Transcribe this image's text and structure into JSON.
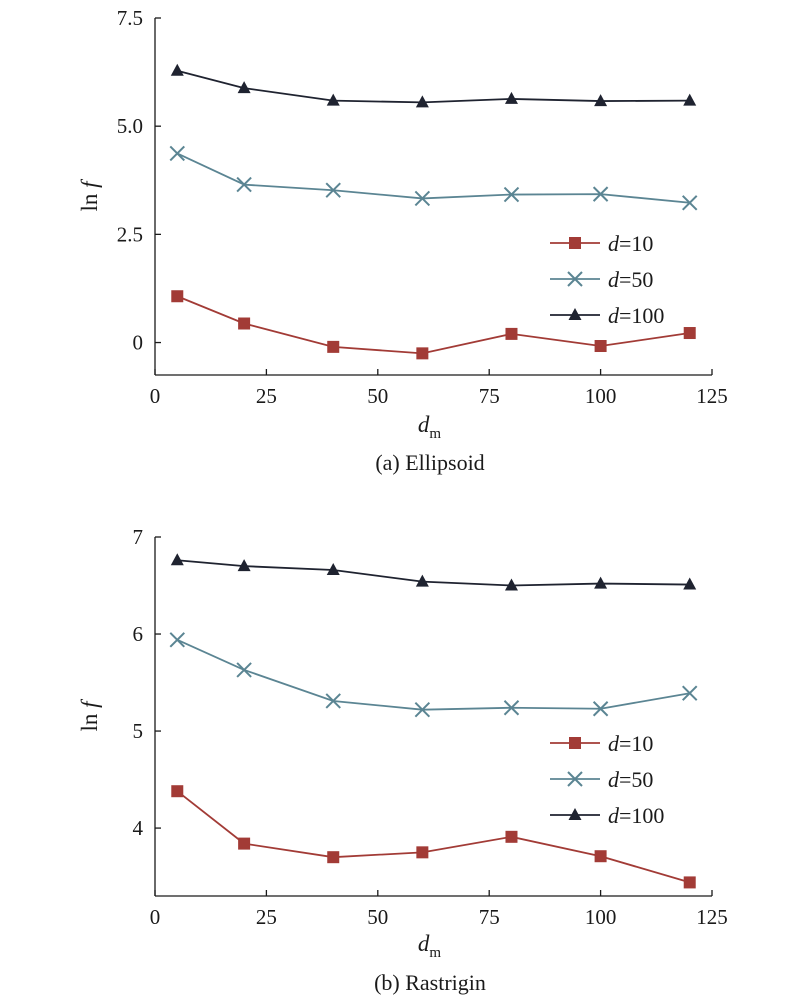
{
  "chart_data": [
    {
      "type": "line",
      "caption": "(a) Ellipsoid",
      "xlabel": {
        "base": "d",
        "sub": "m"
      },
      "ylabel": {
        "prefix": "ln ",
        "var": "f"
      },
      "xlim": [
        0,
        125
      ],
      "ylim": [
        -0.75,
        7.5
      ],
      "xticks": [
        0,
        25,
        50,
        75,
        100,
        125
      ],
      "xtick_labels": [
        "0",
        "25",
        "50",
        "75",
        "100",
        "125"
      ],
      "yticks": [
        0,
        2.5,
        5.0,
        7.5
      ],
      "ytick_labels": [
        "0",
        "2.5",
        "5.0",
        "7.5"
      ],
      "grid": false,
      "legend_position": "right",
      "x": [
        5,
        20,
        40,
        60,
        80,
        100,
        120
      ],
      "series": [
        {
          "name_var": "d",
          "name_value": "=10",
          "marker": "square",
          "color": "#a23b36",
          "values": [
            1.07,
            0.44,
            -0.1,
            -0.25,
            0.2,
            -0.08,
            0.22
          ]
        },
        {
          "name_var": "d",
          "name_value": "=50",
          "marker": "x",
          "color": "#5b8593",
          "values": [
            4.37,
            3.65,
            3.52,
            3.33,
            3.42,
            3.43,
            3.23
          ]
        },
        {
          "name_var": "d",
          "name_value": "=100",
          "marker": "triangle",
          "color": "#1f2330",
          "values": [
            6.28,
            5.88,
            5.59,
            5.55,
            5.63,
            5.58,
            5.59
          ]
        }
      ]
    },
    {
      "type": "line",
      "caption": "(b) Rastrigin",
      "xlabel": {
        "base": "d",
        "sub": "m"
      },
      "ylabel": {
        "prefix": "ln ",
        "var": "f"
      },
      "xlim": [
        0,
        125
      ],
      "ylim": [
        3.3,
        7.0
      ],
      "xticks": [
        0,
        25,
        50,
        75,
        100,
        125
      ],
      "xtick_labels": [
        "0",
        "25",
        "50",
        "75",
        "100",
        "125"
      ],
      "yticks": [
        4,
        5,
        6,
        7
      ],
      "ytick_labels": [
        "4",
        "5",
        "6",
        "7"
      ],
      "grid": false,
      "legend_position": "right",
      "x": [
        5,
        20,
        40,
        60,
        80,
        100,
        120
      ],
      "series": [
        {
          "name_var": "d",
          "name_value": "=10",
          "marker": "square",
          "color": "#a23b36",
          "values": [
            4.38,
            3.84,
            3.7,
            3.75,
            3.91,
            3.71,
            3.44
          ]
        },
        {
          "name_var": "d",
          "name_value": "=50",
          "marker": "x",
          "color": "#5b8593",
          "values": [
            5.94,
            5.63,
            5.31,
            5.22,
            5.24,
            5.23,
            5.39
          ]
        },
        {
          "name_var": "d",
          "name_value": "=100",
          "marker": "triangle",
          "color": "#1f2330",
          "values": [
            6.76,
            6.7,
            6.66,
            6.54,
            6.5,
            6.52,
            6.51
          ]
        }
      ]
    }
  ]
}
